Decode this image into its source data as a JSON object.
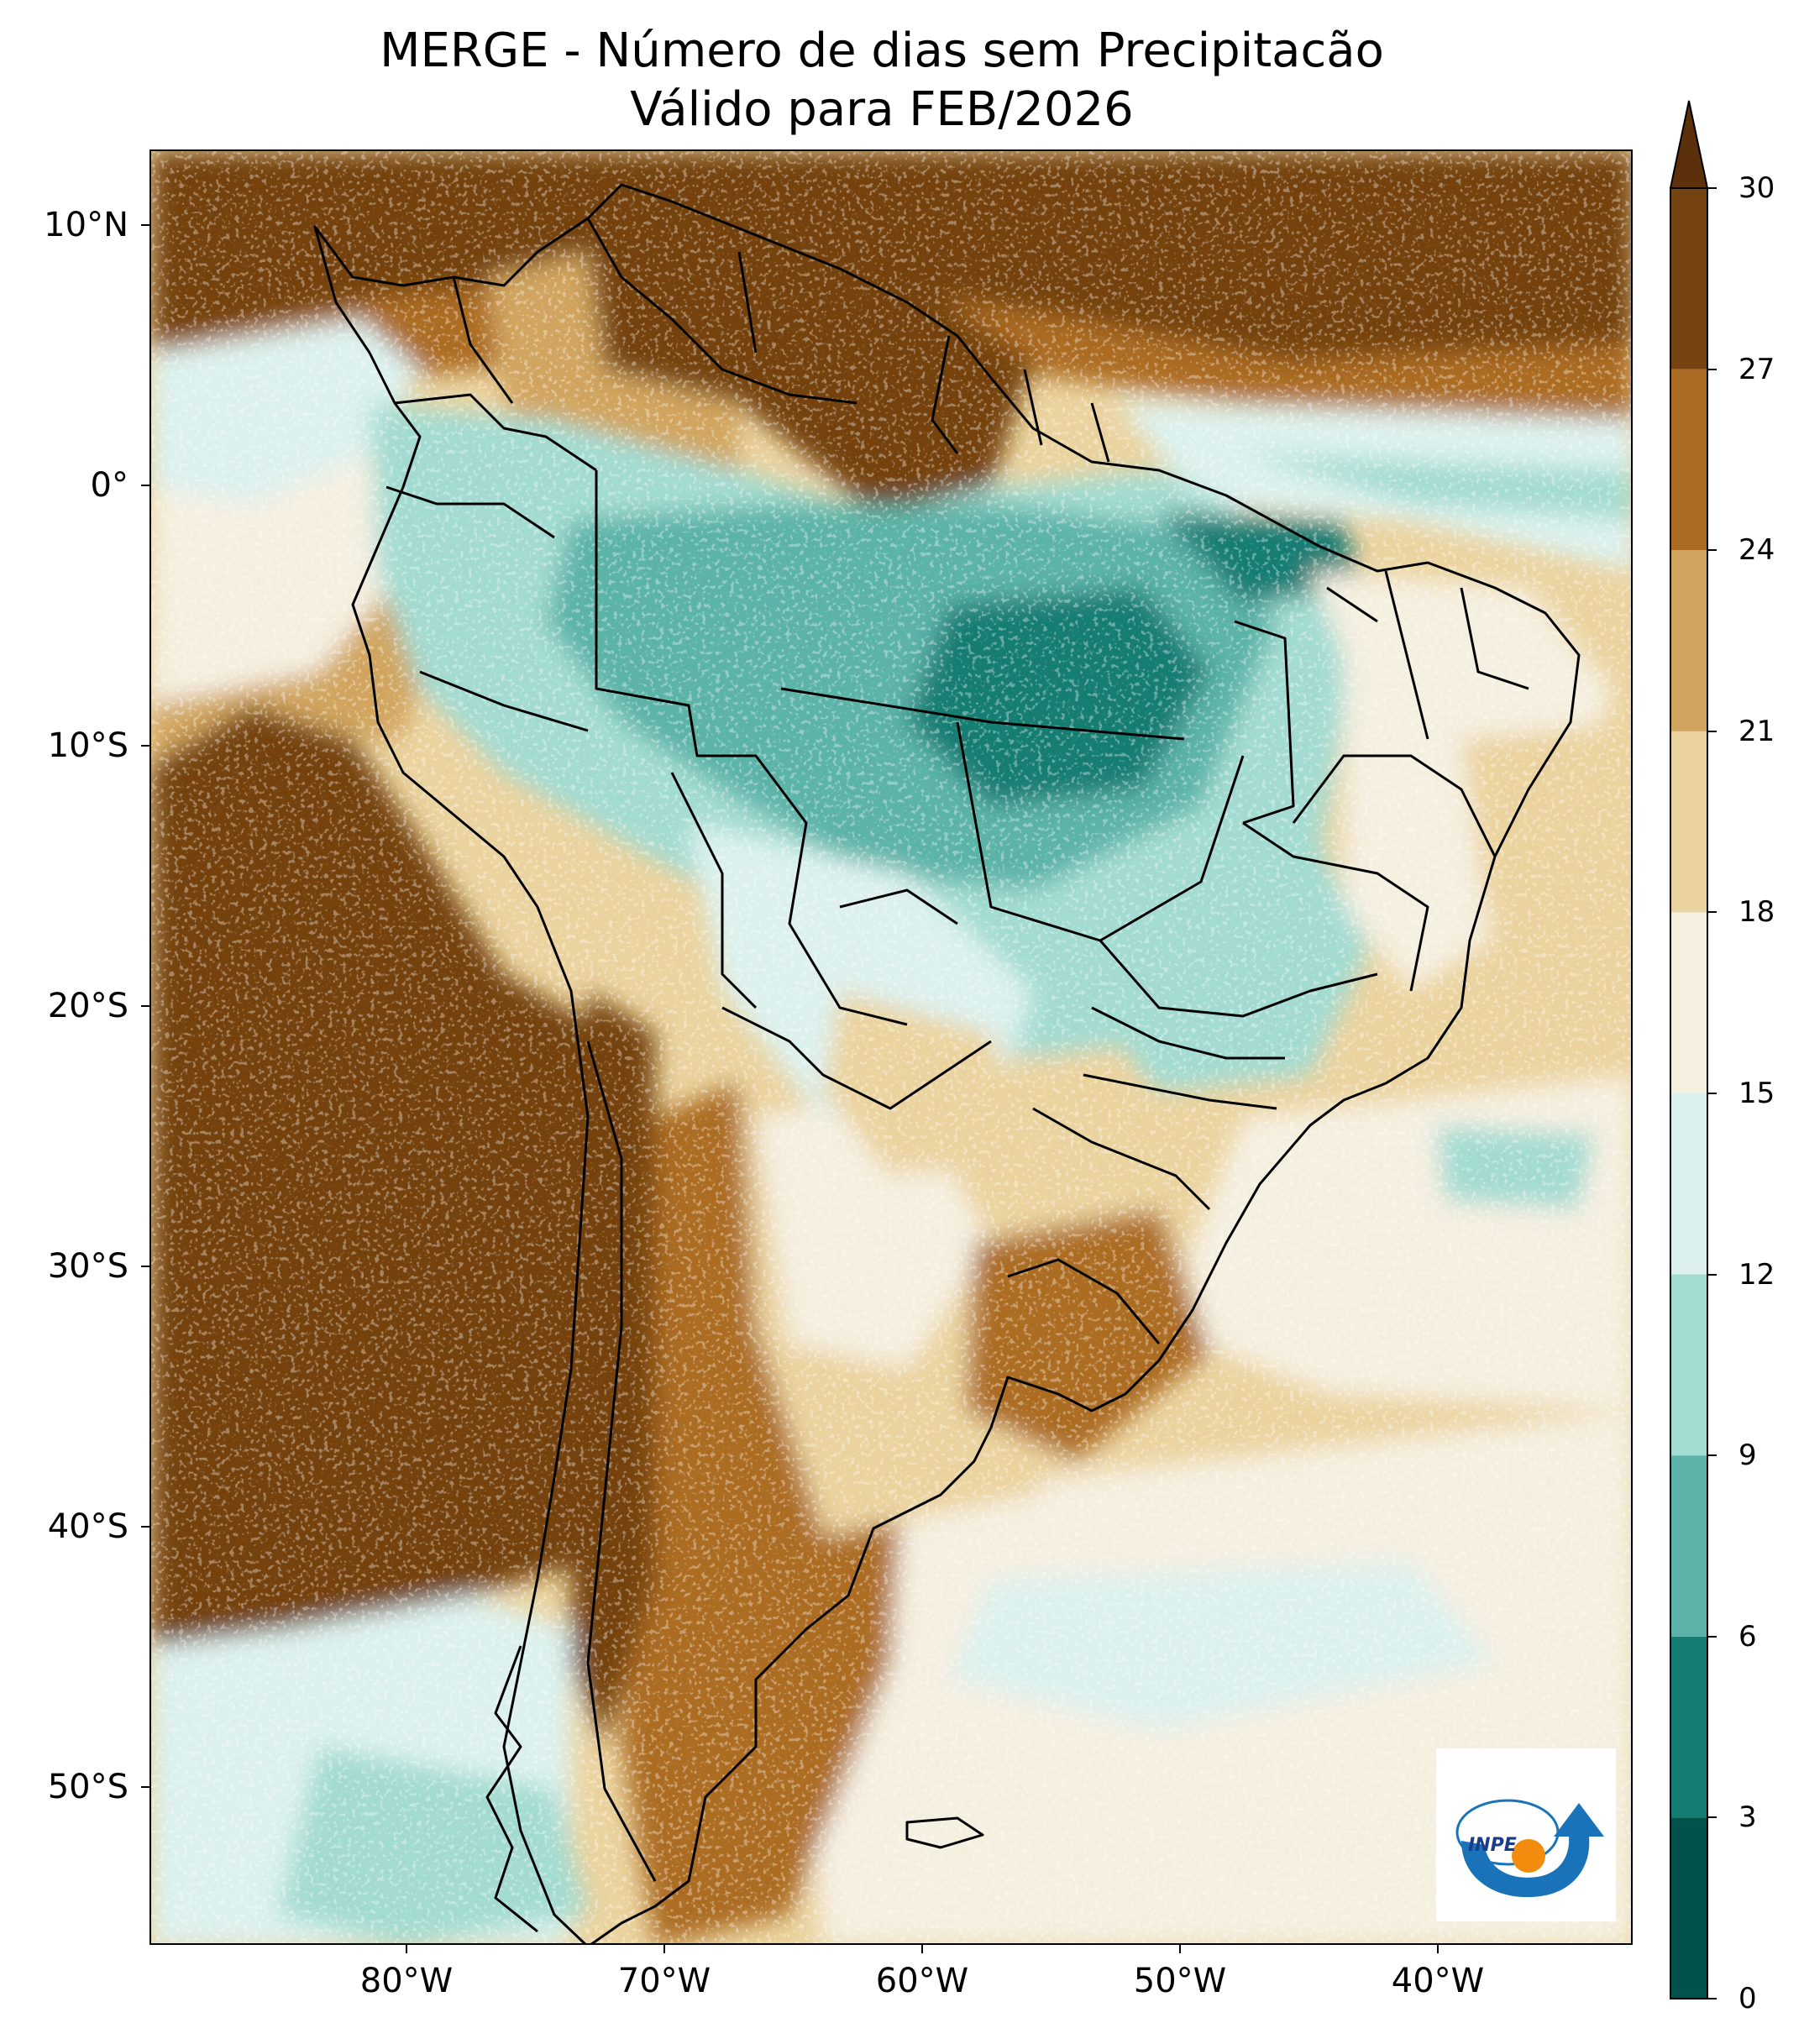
{
  "title": {
    "line1": "MERGE - Número de dias sem Precipitacão",
    "line2": "Válido para FEB/2026"
  },
  "lat_ticks": [
    "10°N",
    "0°",
    "10°S",
    "20°S",
    "30°S",
    "40°S",
    "50°S"
  ],
  "lon_ticks": [
    "80°W",
    "70°W",
    "60°W",
    "50°W",
    "40°W"
  ],
  "colorbar": {
    "tick_labels": [
      "0",
      "3",
      "6",
      "9",
      "12",
      "15",
      "18",
      "21",
      "24",
      "27",
      "30"
    ],
    "colors": [
      "#01524a",
      "#137d73",
      "#5bb3a8",
      "#a3dbd2",
      "#dcf1ee",
      "#f5efe0",
      "#ebd39f",
      "#d1a55f",
      "#ac6c24",
      "#754211"
    ],
    "extend_color": "#5c300a"
  },
  "logo": {
    "text": "INPE",
    "ring_color": "#1a73b8",
    "dot_color": "#f28c0f"
  },
  "chart_data": {
    "type": "heatmap",
    "title": "MERGE - Número de dias sem Precipitacão",
    "subtitle": "Válido para FEB/2026",
    "variable": "Número de dias sem Precipitacão",
    "xlabel": "",
    "ylabel": "",
    "xlim_deg": [
      -90,
      -32
    ],
    "ylim_deg": [
      -56,
      13
    ],
    "xticks": [
      -80,
      -70,
      -60,
      -50,
      -40
    ],
    "yticks": [
      10,
      0,
      -10,
      -20,
      -30,
      -40,
      -50
    ],
    "levels": [
      0,
      3,
      6,
      9,
      12,
      15,
      18,
      21,
      24,
      27,
      30
    ],
    "extend": "max",
    "colormap": "BrBG_r"
  }
}
